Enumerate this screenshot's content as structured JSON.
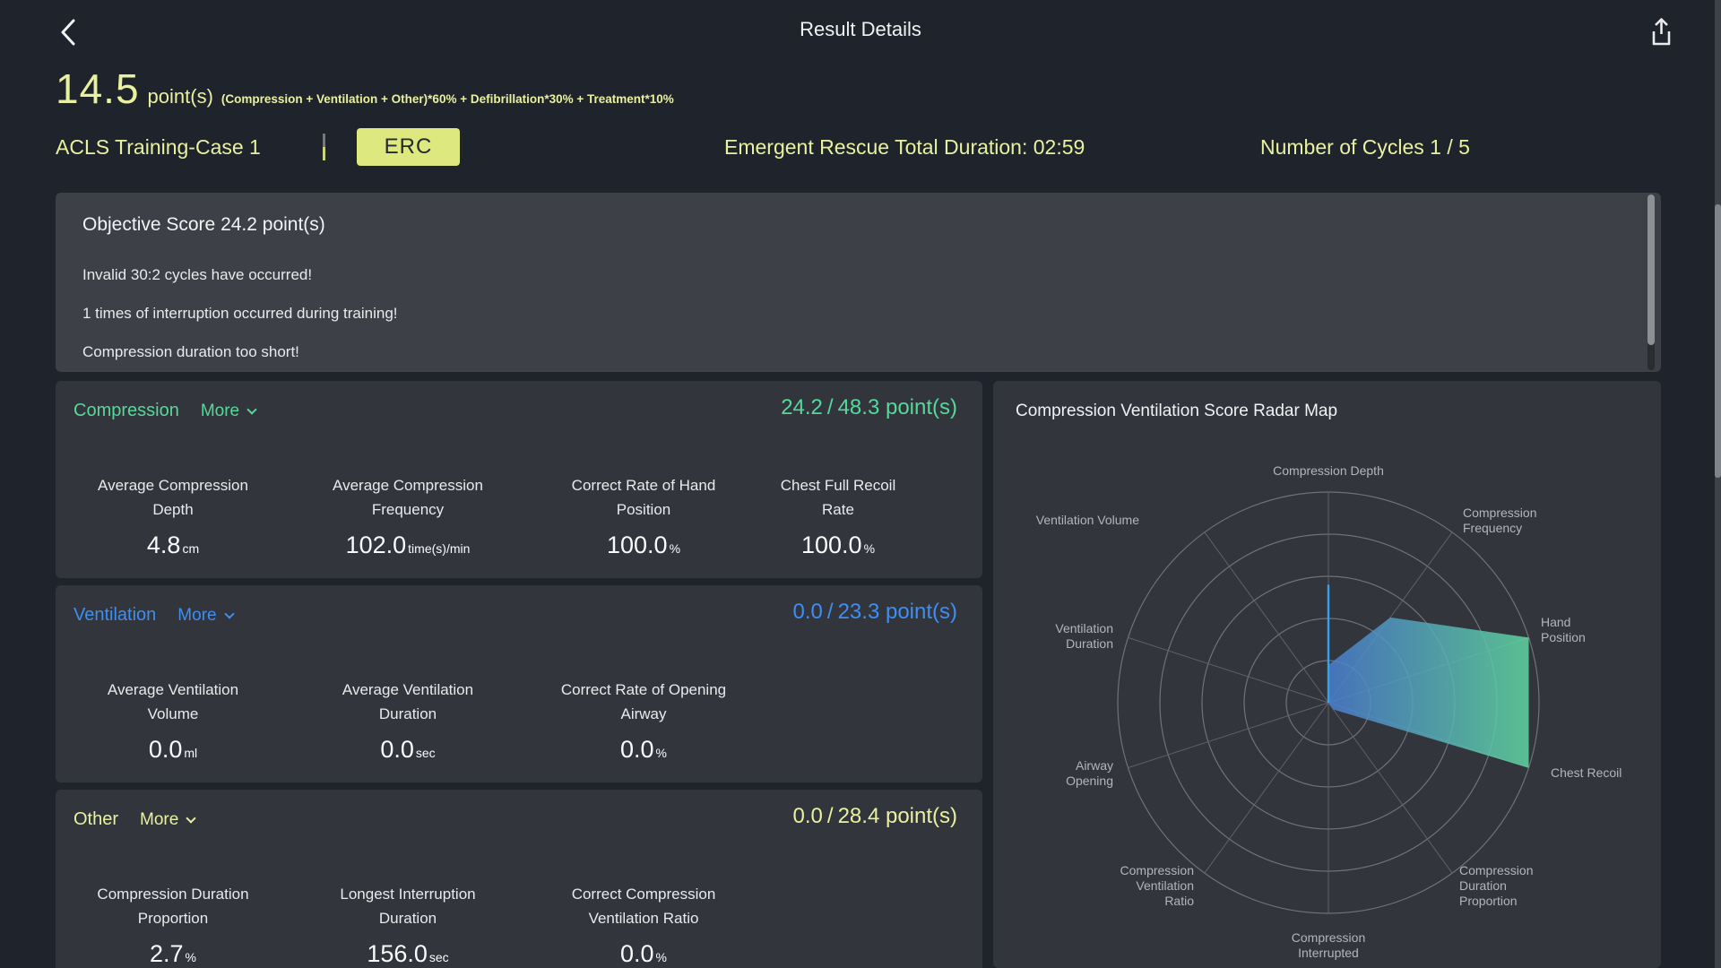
{
  "header": {
    "title": "Result Details",
    "icons": {
      "back": "chevron-left",
      "share": "export-up-arrow"
    }
  },
  "summary": {
    "score": "14.5",
    "score_unit": "point(s)",
    "formula": "(Compression + Ventilation + Other)*60% + Defibrillation*30% + Treatment*10%",
    "case_name": "ACLS Training-Case 1",
    "badge": "ERC",
    "duration": "Emergent Rescue Total Duration: 02:59",
    "cycles": "Number of Cycles 1 / 5"
  },
  "objective": {
    "title": "Objective Score 24.2 point(s)",
    "messages": [
      "Invalid 30:2 cycles have occurred!",
      "1 times of interruption occurred during training!",
      "Compression duration too short!"
    ]
  },
  "labels": {
    "divider": "/"
  },
  "sections": [
    {
      "name": "Compression",
      "more": "More",
      "score": "24.2",
      "total": "48.3",
      "unit": "point(s)",
      "accent": "#57d89b",
      "metrics": [
        {
          "label": "Average Compression\nDepth",
          "value": "4.8",
          "unit": "cm"
        },
        {
          "label": "Average Compression\nFrequency",
          "value": "102.0",
          "unit": "time(s)/min"
        },
        {
          "label": "Correct Rate of Hand\nPosition",
          "value": "100.0",
          "unit": "%"
        },
        {
          "label": "Chest Full Recoil\nRate",
          "value": "100.0",
          "unit": "%"
        }
      ]
    },
    {
      "name": "Ventilation",
      "more": "More",
      "score": "0.0",
      "total": "23.3",
      "unit": "point(s)",
      "accent": "#3f8ef2",
      "metrics": [
        {
          "label": "Average Ventilation\nVolume",
          "value": "0.0",
          "unit": "ml"
        },
        {
          "label": "Average Ventilation\nDuration",
          "value": "0.0",
          "unit": "sec"
        },
        {
          "label": "Correct Rate of Opening\nAirway",
          "value": "0.0",
          "unit": "%"
        }
      ]
    },
    {
      "name": "Other",
      "more": "More",
      "score": "0.0",
      "total": "28.4",
      "unit": "point(s)",
      "accent": "#e9f1a1",
      "metrics": [
        {
          "label": "Compression Duration\nProportion",
          "value": "2.7",
          "unit": "%"
        },
        {
          "label": "Longest Interruption\nDuration",
          "value": "156.0",
          "unit": "sec"
        },
        {
          "label": "Correct Compression\nVentilation Ratio",
          "value": "0.0",
          "unit": "%"
        }
      ]
    }
  ],
  "radar": {
    "title": "Compression Ventilation Score Radar Map",
    "rings": 5,
    "max": 100,
    "axes": [
      {
        "label": "Compression Depth",
        "value": 18
      },
      {
        "label": "Compression\nFrequency",
        "value": 50
      },
      {
        "label": "Hand\nPosition",
        "value": 100
      },
      {
        "label": "Chest Recoil",
        "value": 100
      },
      {
        "label": "Compression\nDuration\nProportion",
        "value": 4
      },
      {
        "label": "Compression\nInterrupted",
        "value": 0
      },
      {
        "label": "Compression\nVentilation\nRatio",
        "value": 0
      },
      {
        "label": "Airway\nOpening",
        "value": 0
      },
      {
        "label": "Ventilation\nDuration",
        "value": 0
      },
      {
        "label": "Ventilation Volume",
        "value": 0
      }
    ],
    "highlight_line": {
      "axis_index": 0,
      "value": 56,
      "color": "#36a3e8"
    },
    "gradient": {
      "from": "#4a7ed2",
      "to": "#60d9a2"
    },
    "ring_color": "#6f7278",
    "spoke_color": "#5f6268"
  },
  "chart_data": {
    "type": "radar",
    "title": "Compression Ventilation Score Radar Map",
    "axes": [
      "Compression Depth",
      "Compression Frequency",
      "Hand Position",
      "Chest Recoil",
      "Compression Duration Proportion",
      "Compression Interrupted",
      "Compression Ventilation Ratio",
      "Airway Opening",
      "Ventilation Duration",
      "Ventilation Volume"
    ],
    "series": [
      {
        "name": "score-polygon",
        "values": [
          18,
          50,
          100,
          100,
          4,
          0,
          0,
          0,
          0,
          0
        ]
      },
      {
        "name": "compression-depth-highlight-line",
        "values": [
          56,
          0,
          0,
          0,
          0,
          0,
          0,
          0,
          0,
          0
        ]
      }
    ],
    "range": [
      0,
      100
    ],
    "rings": 5,
    "grid": true,
    "legend": false
  },
  "colors": {
    "accent_yellow": "#e9f1a1",
    "accent_green": "#57d89b",
    "accent_blue": "#3f8ef2",
    "badge_bg": "#dde87f",
    "card_bg": "#32353b",
    "objective_bg": "#3d4046",
    "page_bg": "#1f232b"
  }
}
